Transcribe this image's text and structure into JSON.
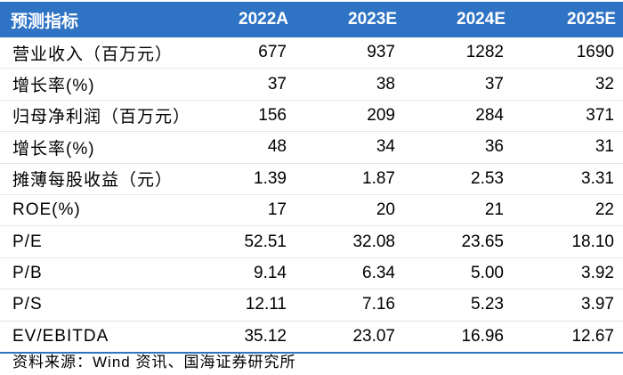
{
  "table": {
    "headers": [
      "预测指标",
      "2022A",
      "2023E",
      "2024E",
      "2025E"
    ],
    "rows": [
      {
        "label": "营业收入（百万元）",
        "values": [
          "677",
          "937",
          "1282",
          "1690"
        ]
      },
      {
        "label": "增长率(%)",
        "values": [
          "37",
          "38",
          "37",
          "32"
        ]
      },
      {
        "label": "归母净利润（百万元）",
        "values": [
          "156",
          "209",
          "284",
          "371"
        ]
      },
      {
        "label": "增长率(%)",
        "values": [
          "48",
          "34",
          "36",
          "31"
        ]
      },
      {
        "label": "摊薄每股收益（元）",
        "values": [
          "1.39",
          "1.87",
          "2.53",
          "3.31"
        ]
      },
      {
        "label": "ROE(%)",
        "values": [
          "17",
          "20",
          "21",
          "22"
        ]
      },
      {
        "label": "P/E",
        "values": [
          "52.51",
          "32.08",
          "23.65",
          "18.10"
        ]
      },
      {
        "label": "P/B",
        "values": [
          "9.14",
          "6.34",
          "5.00",
          "3.92"
        ]
      },
      {
        "label": "P/S",
        "values": [
          "12.11",
          "7.16",
          "5.23",
          "3.97"
        ]
      },
      {
        "label": "EV/EBITDA",
        "values": [
          "35.12",
          "23.07",
          "16.96",
          "12.67"
        ]
      }
    ]
  },
  "source": "资料来源：Wind 资讯、国海证券研究所",
  "colors": {
    "header_background": "#2f73c4",
    "header_text": "#ffffff"
  }
}
